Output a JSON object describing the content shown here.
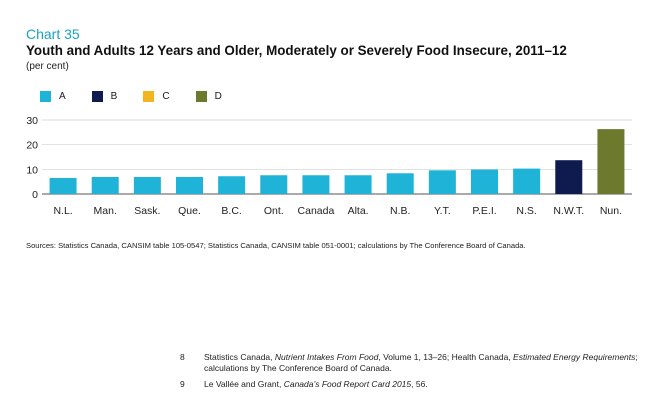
{
  "header": {
    "chart_number": "Chart 35",
    "title": "Youth and Adults 12 Years and Older, Moderately or Severely Food Insecure, 2011–12",
    "subtitle": "(per cent)"
  },
  "colors": {
    "A": "#1fb3d8",
    "B": "#0f1a4f",
    "C": "#f2b522",
    "D": "#6d7a2e"
  },
  "chart_data": {
    "type": "bar",
    "categories": [
      "N.L.",
      "Man.",
      "Sask.",
      "Que.",
      "B.C.",
      "Ont.",
      "Canada",
      "Alta.",
      "N.B.",
      "Y.T.",
      "P.E.I.",
      "N.S.",
      "N.W.T.",
      "Nun."
    ],
    "values": [
      6.5,
      6.9,
      6.9,
      6.9,
      7.2,
      7.6,
      7.6,
      7.6,
      8.4,
      9.6,
      9.9,
      10.3,
      13.7,
      26.3
    ],
    "bar_groups": [
      "A",
      "A",
      "A",
      "A",
      "A",
      "A",
      "A",
      "A",
      "A",
      "A",
      "A",
      "A",
      "B",
      "D"
    ],
    "legend": [
      "A",
      "B",
      "C",
      "D"
    ],
    "yticks": [
      0,
      10,
      20,
      30
    ],
    "ylim": [
      0,
      30
    ],
    "grid": true,
    "legend_position": "top-left"
  },
  "sources": "Sources: Statistics Canada, CANSIM table 105-0547; Statistics Canada, CANSIM table 051-0001; calculations by The Conference Board of Canada.",
  "footnotes": [
    {
      "num": "8",
      "html": "Statistics Canada, <i>Nutrient Intakes From Food</i>, Volume 1, 13–26; Health Canada, <i>Estimated Energy Requirements</i>; calculations by The Conference Board of Canada."
    },
    {
      "num": "9",
      "html": "Le Vallée and Grant, <i>Canada’s Food Report Card 2015</i>, 56."
    }
  ]
}
